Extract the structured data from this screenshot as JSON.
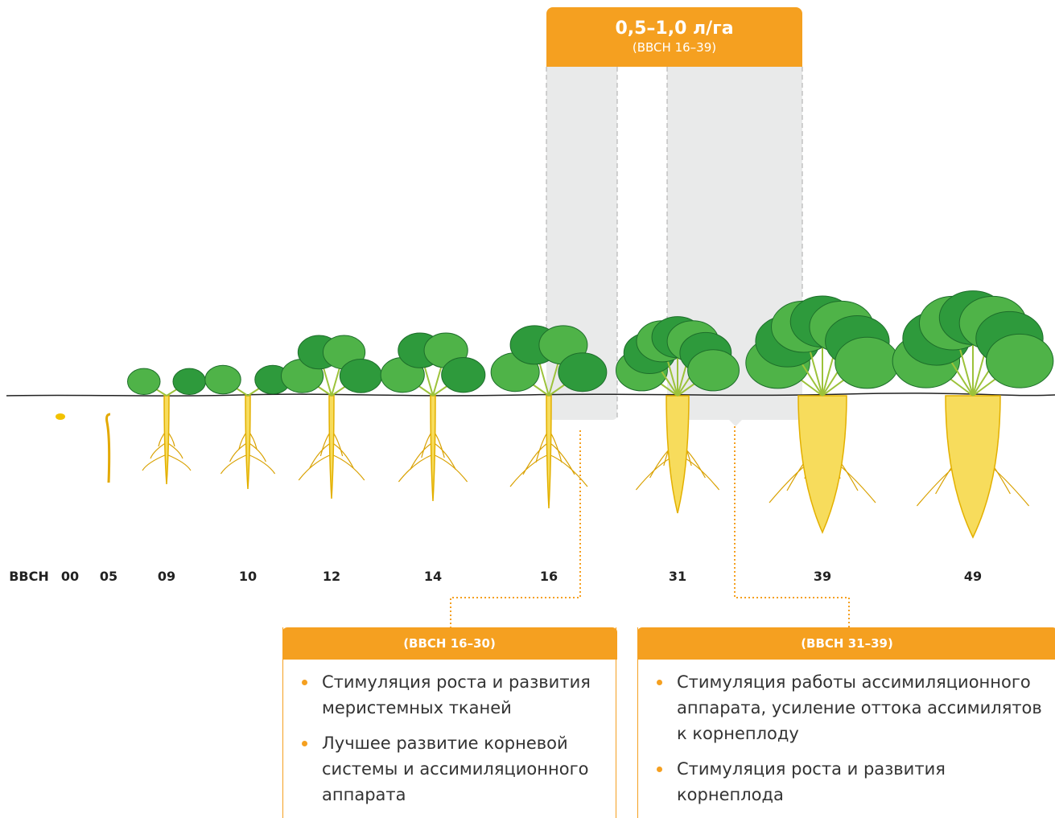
{
  "dose": {
    "title": "0,5–1,0 л/га",
    "subtitle": "(BBCH 16–39)"
  },
  "scale": {
    "label": "BBCH",
    "stages": [
      "00",
      "05",
      "09",
      "10",
      "12",
      "14",
      "16",
      "31",
      "39",
      "49"
    ]
  },
  "boxes": [
    {
      "title": "(BBCH 16–30)",
      "items": [
        "Стимуляция роста и развития меристемных тканей",
        "Лучшее развитие корневой системы и ассимиляционного аппарата"
      ]
    },
    {
      "title": "(BBCH 31–39)",
      "items": [
        "Стимуляция работы ассимиляционного аппарата, усиление оттока ассимилятов к корнеплоду",
        "Стимуляция роста и развития корнеплода"
      ]
    }
  ]
}
